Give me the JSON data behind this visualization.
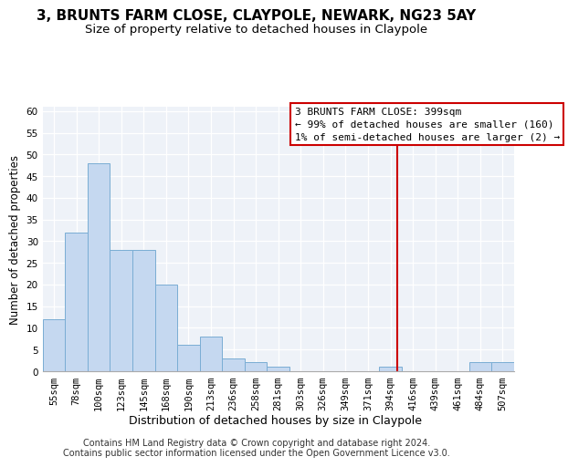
{
  "title": "3, BRUNTS FARM CLOSE, CLAYPOLE, NEWARK, NG23 5AY",
  "subtitle": "Size of property relative to detached houses in Claypole",
  "xlabel": "Distribution of detached houses by size in Claypole",
  "ylabel": "Number of detached properties",
  "bar_labels": [
    "55sqm",
    "78sqm",
    "100sqm",
    "123sqm",
    "145sqm",
    "168sqm",
    "190sqm",
    "213sqm",
    "236sqm",
    "258sqm",
    "281sqm",
    "303sqm",
    "326sqm",
    "349sqm",
    "371sqm",
    "394sqm",
    "416sqm",
    "439sqm",
    "461sqm",
    "484sqm",
    "507sqm"
  ],
  "bar_values": [
    12,
    32,
    48,
    28,
    28,
    20,
    6,
    8,
    3,
    2,
    1,
    0,
    0,
    0,
    0,
    1,
    0,
    0,
    0,
    2,
    2
  ],
  "bar_color": "#c5d8f0",
  "bar_edge_color": "#7aadd4",
  "vline_color": "#cc0000",
  "vline_x": 15.3,
  "property_label": "3 BRUNTS FARM CLOSE: 399sqm",
  "annotation_line1": "← 99% of detached houses are smaller (160)",
  "annotation_line2": "1% of semi-detached houses are larger (2) →",
  "ylim": [
    0,
    61
  ],
  "yticks": [
    0,
    5,
    10,
    15,
    20,
    25,
    30,
    35,
    40,
    45,
    50,
    55,
    60
  ],
  "background_color": "#eef2f8",
  "grid_color": "#ffffff",
  "footer_line1": "Contains HM Land Registry data © Crown copyright and database right 2024.",
  "footer_line2": "Contains public sector information licensed under the Open Government Licence v3.0.",
  "title_fontsize": 11,
  "subtitle_fontsize": 9.5,
  "xlabel_fontsize": 9,
  "ylabel_fontsize": 8.5,
  "tick_fontsize": 7.5,
  "footer_fontsize": 7,
  "annotation_fontsize": 8
}
